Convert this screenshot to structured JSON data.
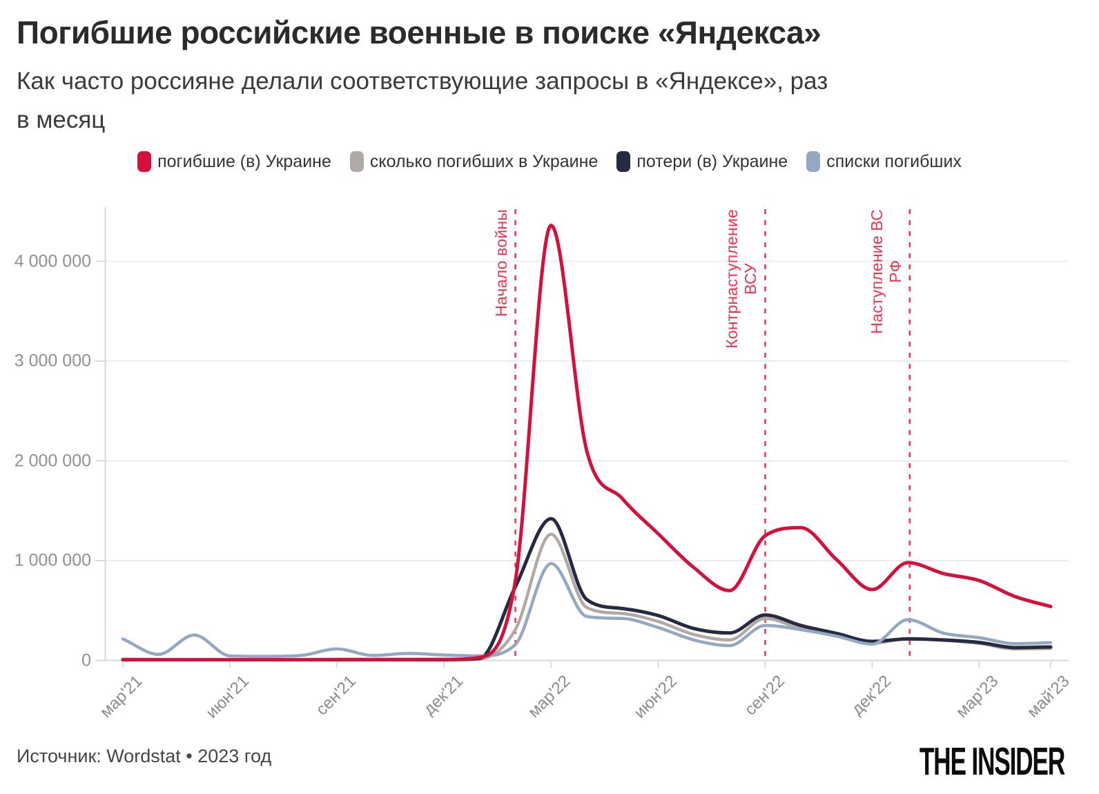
{
  "header": {
    "title": "Погибшие российские военные в поиске «Яндекса»",
    "subtitle_lines": [
      "Как часто россияне делали соответствующие запросы в «Яндексе», раз",
      "в месяц"
    ]
  },
  "legend": {
    "items": [
      {
        "label": "погибшие (в) Украине",
        "color": "#d4113d"
      },
      {
        "label": "сколько погибших в Украине",
        "color": "#b1a9a6"
      },
      {
        "label": "потери (в) Украине",
        "color": "#262b42"
      },
      {
        "label": "списки погибших",
        "color": "#95a8c3"
      }
    ]
  },
  "chart_data": {
    "type": "line",
    "x_unit": "month",
    "x_months": [
      "мар'21",
      "апр'21",
      "май'21",
      "июн'21",
      "июл'21",
      "авг'21",
      "сен'21",
      "окт'21",
      "ноя'21",
      "дек'21",
      "янв'22",
      "фев'22",
      "мар'22",
      "апр'22",
      "май'22",
      "июн'22",
      "июл'22",
      "авг'22",
      "сен'22",
      "окт'22",
      "ноя'22",
      "дек'22",
      "янв'23",
      "фев'23",
      "мар'23",
      "апр'23",
      "май'23"
    ],
    "x_tick_labels": [
      "мар'21",
      "июн'21",
      "сен'21",
      "дек'21",
      "мар'22",
      "июн'22",
      "сен'22",
      "дек'22",
      "мар'23",
      "май'23"
    ],
    "x_tick_month_index": [
      0,
      3,
      6,
      9,
      12,
      15,
      18,
      21,
      24,
      26
    ],
    "ylim": [
      0,
      4500000
    ],
    "yticks": [
      {
        "value": 0,
        "label": "0"
      },
      {
        "value": 1000000,
        "label": "1 000 000"
      },
      {
        "value": 2000000,
        "label": "2 000 000"
      },
      {
        "value": 3000000,
        "label": "3 000 000"
      },
      {
        "value": 4000000,
        "label": "4 000 000"
      }
    ],
    "grid": "horizontal",
    "legend_position": "top",
    "series": [
      {
        "id": "dead-in-ukraine",
        "name": "погибшие (в) Украине",
        "color": "#d4113d",
        "values": [
          8000,
          6000,
          7000,
          6000,
          6000,
          7000,
          9000,
          8000,
          9000,
          10000,
          30000,
          800000,
          4360000,
          2100000,
          1620000,
          1270000,
          930000,
          700000,
          1250000,
          1330000,
          1010000,
          710000,
          980000,
          870000,
          800000,
          640000,
          540000
        ]
      },
      {
        "id": "how-many-dead-in-ukraine",
        "name": "сколько погибших в Украине",
        "color": "#b1a9a6",
        "values": [
          3000,
          3000,
          3000,
          3000,
          3000,
          4000,
          5000,
          4000,
          5000,
          6000,
          15000,
          310000,
          1265000,
          530000,
          470000,
          390000,
          260000,
          205000,
          420000,
          320000,
          250000,
          170000,
          220000,
          200000,
          170000,
          115000,
          120000
        ]
      },
      {
        "id": "losses-in-ukraine",
        "name": "потери (в) Украине",
        "color": "#262b42",
        "values": [
          4000,
          4000,
          4000,
          4000,
          4000,
          5000,
          6000,
          5000,
          6000,
          7000,
          20000,
          740000,
          1420000,
          610000,
          520000,
          450000,
          320000,
          275000,
          455000,
          350000,
          270000,
          190000,
          215000,
          205000,
          180000,
          128000,
          135000
        ]
      },
      {
        "id": "lists-of-dead",
        "name": "списки погибших",
        "color": "#95a8c3",
        "values": [
          215000,
          60000,
          255000,
          45000,
          40000,
          50000,
          115000,
          50000,
          70000,
          55000,
          45000,
          160000,
          970000,
          440000,
          420000,
          330000,
          205000,
          148000,
          350000,
          308000,
          243000,
          163000,
          408000,
          273000,
          228000,
          168000,
          178000
        ]
      }
    ],
    "draw_order": [
      "how-many-dead-in-ukraine",
      "losses-in-ukraine",
      "lists-of-dead",
      "dead-in-ukraine"
    ],
    "annotations": [
      {
        "id": "war-start",
        "lines": [
          "Начало войны"
        ],
        "month_index": 11,
        "color": "#f3304b"
      },
      {
        "id": "ukraine-counteroffensive",
        "lines": [
          "Контрнаступление",
          "ВСУ"
        ],
        "month_index": 18,
        "color": "#f3304b"
      },
      {
        "id": "russia-offensive",
        "lines": [
          "Наступление ВС",
          "РФ"
        ],
        "month_index": 22.05,
        "color": "#f3304b"
      }
    ]
  },
  "footer": {
    "source": "Источник: Wordstat • 2023 год",
    "logo": "THE INSIDER"
  }
}
